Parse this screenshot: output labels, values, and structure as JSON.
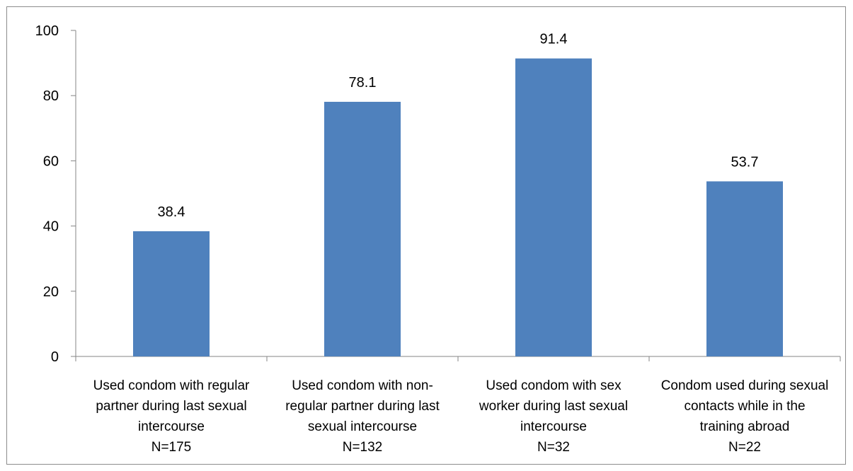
{
  "chart_data": {
    "type": "bar",
    "title": "",
    "xlabel": "",
    "ylabel": "",
    "ylim": [
      0,
      100
    ],
    "yticks": [
      0,
      20,
      40,
      60,
      80,
      100
    ],
    "grid": false,
    "legend": "none",
    "bar_color": "#4f81bd",
    "categories": [
      [
        "Used condom with regular",
        "partner during last sexual",
        "intercourse",
        "N=175"
      ],
      [
        "Used condom with non-",
        "regular partner during last",
        "sexual intercourse",
        "N=132"
      ],
      [
        "Used condom with sex",
        "worker during last sexual",
        "intercourse",
        "N=32"
      ],
      [
        "Condom used during sexual",
        "contacts while in the",
        "training abroad",
        "N=22"
      ]
    ],
    "values": [
      38.4,
      78.1,
      91.4,
      53.7
    ],
    "data_labels": [
      "38.4",
      "78.1",
      "91.4",
      "53.7"
    ]
  }
}
